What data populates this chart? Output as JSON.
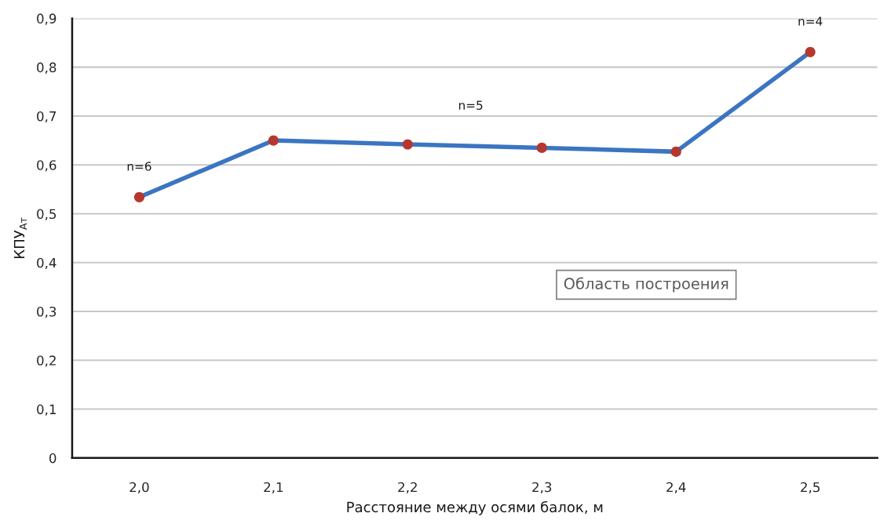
{
  "chart_data": {
    "type": "line",
    "categories": [
      "2,0",
      "2,1",
      "2,2",
      "2,3",
      "2,4",
      "2,5"
    ],
    "series": [
      {
        "color": "#3b75c2",
        "colors": [
          "#b5382f",
          "#b5382f",
          "#b5382f",
          "#b5382f",
          "#b5382f",
          "#b5382f"
        ],
        "values": [
          0.534,
          0.65,
          0.642,
          0.635,
          0.627,
          0.831
        ]
      }
    ],
    "ylim": [
      0,
      0.9
    ],
    "yticks": [
      0,
      {
        "value": 0.1,
        "label": "0,1"
      },
      {
        "value": 0.2,
        "label": "0,2"
      },
      {
        "value": 0.3,
        "label": "0,3"
      },
      {
        "value": 0.4,
        "label": "0,4"
      },
      {
        "value": 0.5,
        "label": "0,5"
      },
      {
        "value": 0.6,
        "label": "0,6"
      },
      {
        "value": 0.7,
        "label": "0,7"
      },
      {
        "value": 0.8,
        "label": "0,8"
      },
      {
        "value": 0.9,
        "label": "0,9"
      }
    ],
    "xlabel": "Расстояние между осями балок, м",
    "ylabel": "КПУ$_{Ат}$",
    "annotations": [
      {
        "text": "n=6",
        "x": "2,0",
        "y": 0.534
      },
      "n=5",
      {
        "text": "n=4",
        "x": "2,5",
        "y": 0.831
      },
      "Область построения"
    ],
    "grid": "y",
    "marker": "circle",
    "line_style": "solid"
  }
}
